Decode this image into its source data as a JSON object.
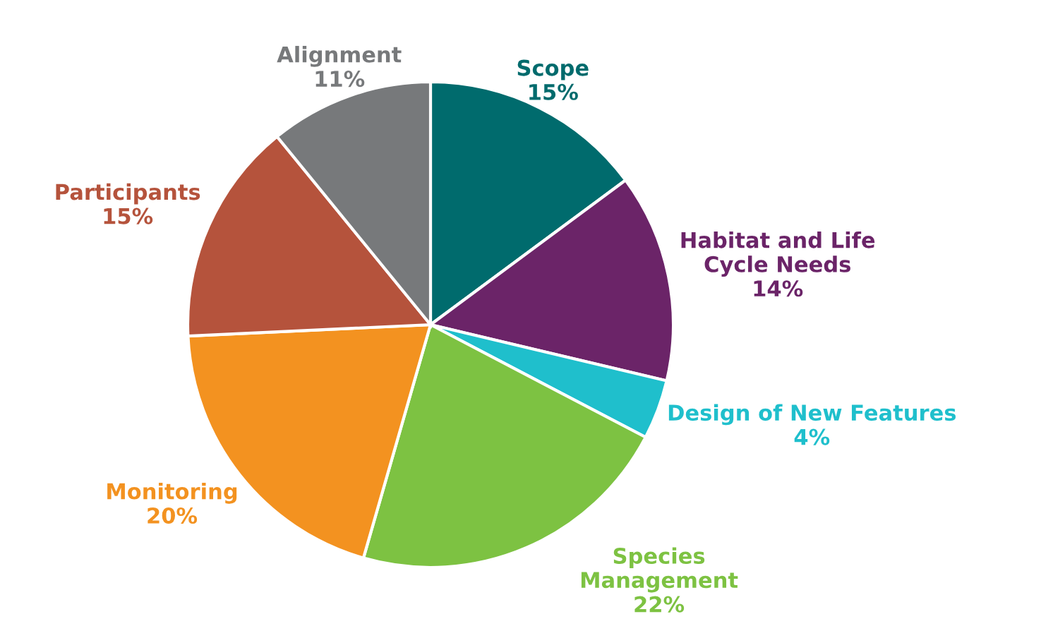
{
  "chart_data": {
    "type": "pie",
    "categories": [
      "Scope",
      "Habitat and Life\nCycle Needs",
      "Design of New Features",
      "Species\nManagement",
      "Monitoring",
      "Participants",
      "Alignment"
    ],
    "values": [
      15,
      14,
      4,
      22,
      20,
      15,
      11
    ],
    "colors": [
      "#006b6d",
      "#6b2468",
      "#1fbfcc",
      "#7dc242",
      "#f39220",
      "#b5533c",
      "#77797b"
    ],
    "value_labels": [
      "15%",
      "14%",
      "4%",
      "22%",
      "20%",
      "15%",
      "11%"
    ]
  }
}
